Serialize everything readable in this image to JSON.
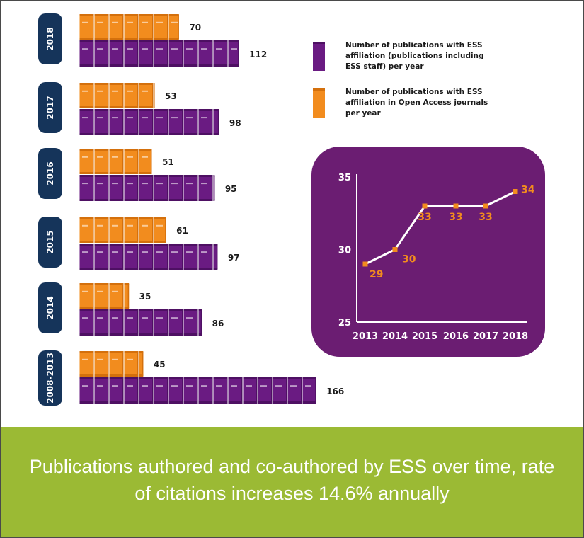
{
  "colors": {
    "purple": "#6a1b82",
    "purple_dark": "#4e1063",
    "orange": "#f28c1e",
    "orange_dark": "#d4700c",
    "navy": "#15345a",
    "panel": "#6b1d72",
    "band": "#9bba34"
  },
  "chart_data": [
    {
      "type": "bar",
      "categories": [
        "2018",
        "2017",
        "2016",
        "2015",
        "2014",
        "2008-2013"
      ],
      "series": [
        {
          "name": "Number of publications with ESS affiliation (publications including ESS staff) per year",
          "color": "#6a1b82",
          "values": [
            112,
            98,
            95,
            97,
            86,
            166
          ]
        },
        {
          "name": "Number of publications with ESS affiliation in Open Access journals per year",
          "color": "#f28c1e",
          "values": [
            70,
            53,
            51,
            61,
            35,
            45
          ]
        }
      ],
      "legend": "right",
      "title": "",
      "xlabel": "",
      "ylabel": ""
    },
    {
      "type": "line",
      "x": [
        "2013",
        "2014",
        "2015",
        "2016",
        "2017",
        "2018"
      ],
      "series": [
        {
          "values": [
            29,
            30,
            33,
            33,
            33,
            34
          ]
        }
      ],
      "yticks": [
        25,
        30,
        35
      ],
      "ylim": [
        25,
        35
      ],
      "title": "",
      "xlabel": "",
      "ylabel": ""
    }
  ],
  "caption": "Publications authored and co-authored by ESS over time, rate of citations increases 14.6% annually"
}
